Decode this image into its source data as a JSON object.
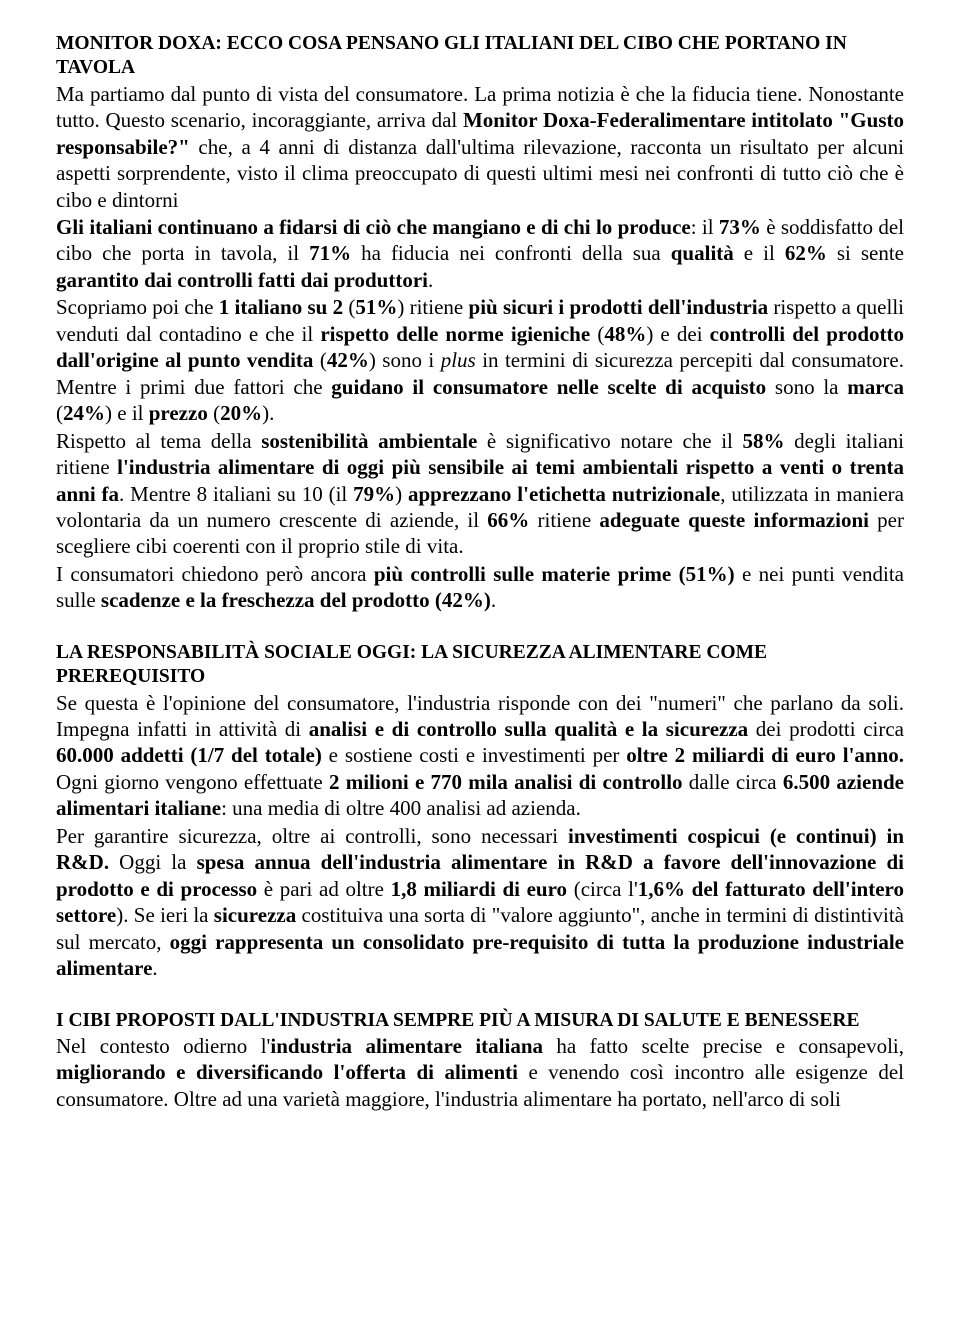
{
  "section1": {
    "heading": "MONITOR DOXA: ECCO COSA PENSANO GLI ITALIANI DEL CIBO CHE PORTANO IN TAVOLA",
    "p1a": "Ma partiamo dal punto di vista del consumatore. La prima notizia è che la fiducia tiene. Nonostante tutto. Questo scenario, incoraggiante, arriva dal ",
    "p1b": "Monitor Doxa-Federalimentare intitolato \"Gusto responsabile?\"",
    "p1c": " che, a 4 anni di distanza dall'ultima rilevazione, racconta un risultato per alcuni aspetti sorprendente, visto il clima preoccupato di questi ultimi mesi nei confronti di tutto ciò che è cibo e dintorni",
    "p2a": "Gli italiani continuano a fidarsi di ciò che mangiano e di chi lo produce",
    "p2b": ":  il ",
    "p2c": "73%",
    "p2d": "  è soddisfatto del cibo che porta in tavola, il ",
    "p2e": "71%",
    "p2f": " ha fiducia nei confronti della sua ",
    "p2g": "qualità",
    "p2h": " e il ",
    "p2i": "62%",
    "p2j": " si sente ",
    "p2k": "garantito dai controlli fatti dai produttori",
    "p2l": ".",
    "p3a": "Scopriamo poi che ",
    "p3b": "1 italiano su 2",
    "p3c": "  (",
    "p3d": "51%",
    "p3e": ") ritiene ",
    "p3f": "più sicuri i prodotti dell'industria",
    "p3g": " rispetto a quelli venduti dal contadino e che il  ",
    "p3h": "rispetto delle norme igieniche",
    "p3i": " (",
    "p3j": "48%",
    "p3k": ") e dei ",
    "p3l": "controlli del prodotto dall'origine al punto vendita",
    "p3m": " (",
    "p3n": "42%",
    "p3o": ") sono i ",
    "p3p": "plus",
    "p3q": " in termini di sicurezza percepiti dal consumatore. Mentre i primi due fattori che ",
    "p3r": "guidano il consumatore nelle scelte di acquisto",
    "p3s": " sono la ",
    "p3t": "marca",
    "p3u": " (",
    "p3v": "24%",
    "p3w": ") e il ",
    "p3x": "prezzo",
    "p3y": " (",
    "p3z": "20%",
    "p3aa": ").",
    "p4a": "Rispetto al tema della ",
    "p4b": "sostenibilità ambientale",
    "p4c": " è significativo notare che il ",
    "p4d": "58%",
    "p4e": " degli italiani ritiene ",
    "p4f": "l'industria alimentare di oggi più sensibile ai temi ambientali rispetto a venti o trenta anni fa",
    "p4g": ". Mentre 8 italiani su 10 (il ",
    "p4h": "79%",
    "p4i": ") ",
    "p4j": "apprezzano l'etichetta nutrizionale",
    "p4k": ", utilizzata in maniera volontaria da un numero crescente di aziende, il ",
    "p4l": "66%",
    "p4m": " ritiene ",
    "p4n": "adeguate queste informazioni",
    "p4o": " per scegliere cibi coerenti con il proprio stile di vita.",
    "p5a": "I consumatori chiedono però ancora ",
    "p5b": "più controlli sulle materie prime (51%)",
    "p5c": " e nei punti vendita sulle ",
    "p5d": "scadenze e la freschezza del prodotto (42%)",
    "p5e": "."
  },
  "section2": {
    "heading": "LA RESPONSABILITÀ SOCIALE OGGI: LA SICUREZZA ALIMENTARE COME  PREREQUISITO",
    "p1a": "Se questa è l'opinione del consumatore, l'industria risponde con dei \"numeri\" che parlano da soli. Impegna infatti in attività di ",
    "p1b": "analisi e di controllo sulla qualità e la sicurezza",
    "p1c": " dei prodotti circa ",
    "p1d": "60.000 addetti (1/7 del totale)",
    "p1e": " e sostiene costi e investimenti per ",
    "p1f": "oltre 2 miliardi di euro l'anno.",
    "p1g": " Ogni giorno vengono effettuate ",
    "p1h": "2 milioni e 770 mila analisi di controllo",
    "p1i": " dalle circa ",
    "p1j": "6.500 aziende alimentari italiane",
    "p1k": ": una media di oltre 400 analisi ad azienda.",
    "p2a": "Per garantire sicurezza, oltre ai controlli, sono necessari ",
    "p2b": "investimenti cospicui (e continui) in R&D.",
    "p2c": " Oggi la ",
    "p2d": "spesa annua dell'industria alimentare in R&D a favore dell'innovazione di prodotto e di processo",
    "p2e": " è pari ad oltre ",
    "p2f": "1,8 miliardi di euro",
    "p2g": " (circa l'",
    "p2h": "1,6% del fatturato dell'intero settore",
    "p2i": "). Se ieri la ",
    "p2j": "sicurezza",
    "p2k": " costituiva una sorta di \"valore aggiunto\", anche in termini di distintività sul mercato, ",
    "p2l": "oggi rappresenta un consolidato pre-requisito di tutta la produzione industriale alimentare",
    "p2m": "."
  },
  "section3": {
    "heading": "I CIBI PROPOSTI DALL'INDUSTRIA SEMPRE PIÙ A MISURA DI SALUTE E BENESSERE",
    "p1a": "Nel contesto odierno l'",
    "p1b": "industria alimentare italiana",
    "p1c": " ha fatto scelte precise e consapevoli, ",
    "p1d": "migliorando e diversificando l'offerta di alimenti",
    "p1e": " e venendo così incontro alle esigenze del consumatore. Oltre ad una varietà maggiore, l'industria alimentare ha portato, nell'arco di soli"
  }
}
